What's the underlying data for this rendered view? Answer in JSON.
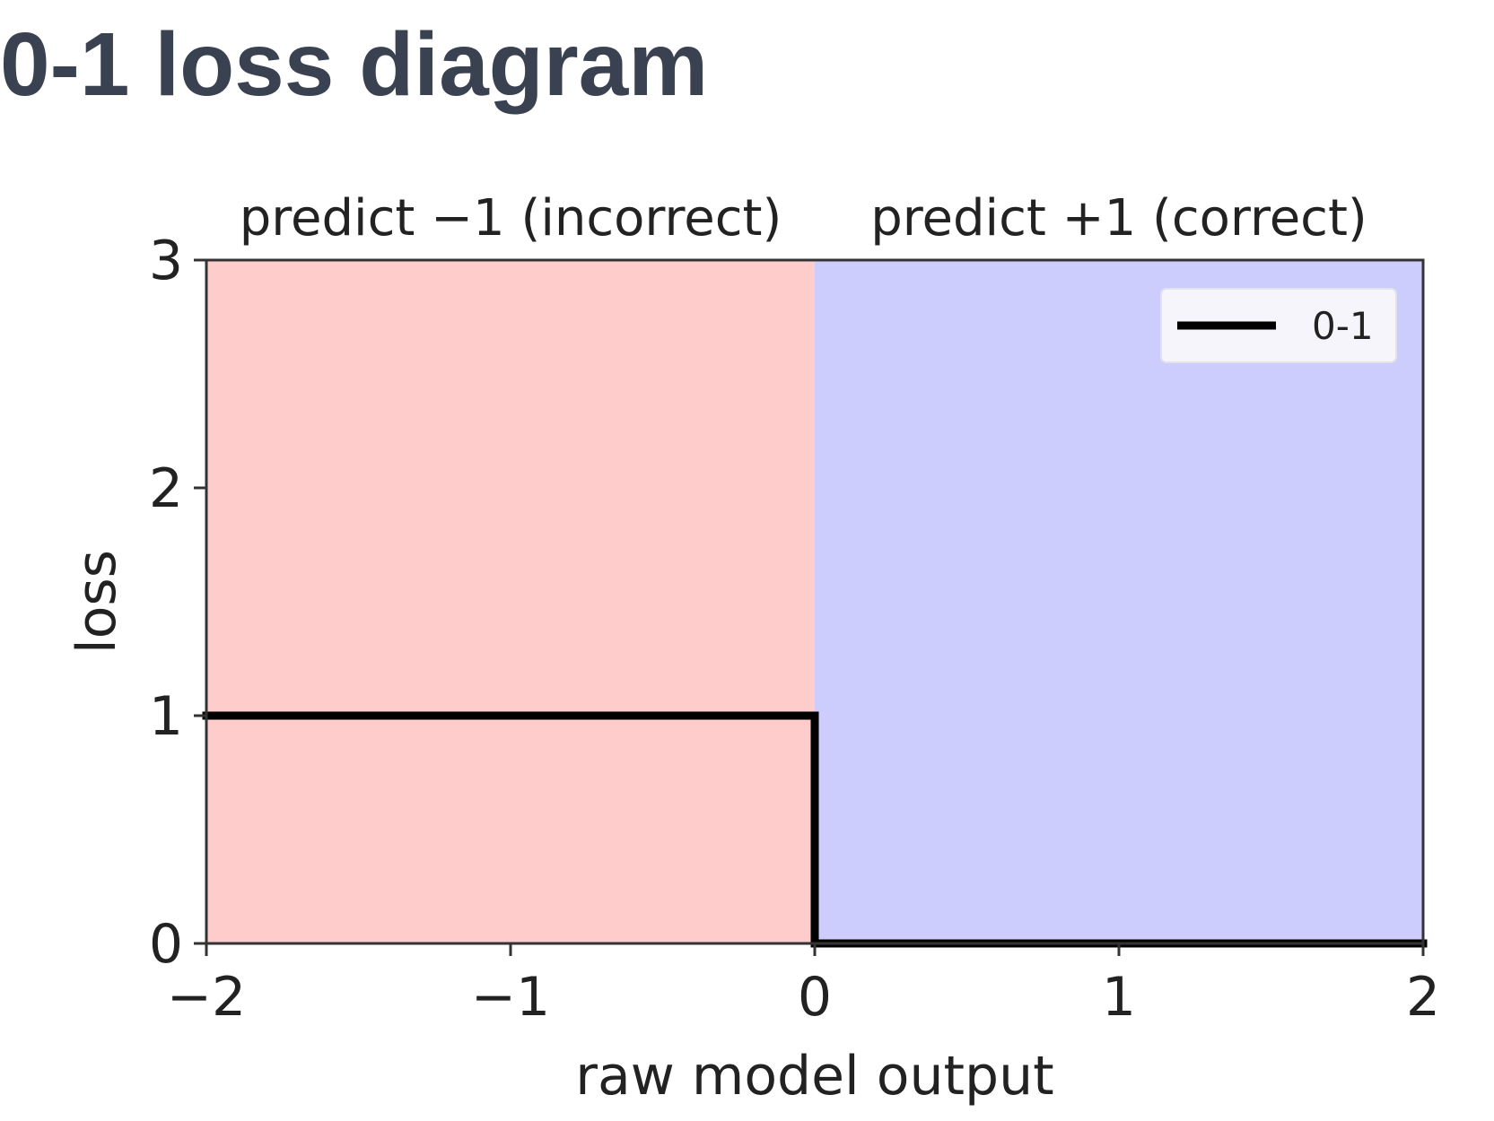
{
  "title": "0-1 loss diagram",
  "chart_data": {
    "type": "line",
    "title": "",
    "xlabel": "raw model output",
    "ylabel": "loss",
    "xlim": [
      -2,
      2
    ],
    "ylim": [
      0,
      3
    ],
    "x_ticks": [
      -2,
      -1,
      0,
      1,
      2
    ],
    "x_tick_labels": [
      "−2",
      "−1",
      "0",
      "1",
      "2"
    ],
    "y_ticks": [
      0,
      1,
      2,
      3
    ],
    "y_tick_labels": [
      "0",
      "1",
      "2",
      "3"
    ],
    "grid": false,
    "legend_position": "top-right",
    "regions": [
      {
        "label": "predict −1 (incorrect)",
        "x_from": -2,
        "x_to": 0,
        "color": "#ffcccc"
      },
      {
        "label": "predict +1 (correct)",
        "x_from": 0,
        "x_to": 2,
        "color": "#ccccfd"
      }
    ],
    "series": [
      {
        "name": "0-1",
        "color": "#000000",
        "x": [
          -2,
          0,
          0,
          2
        ],
        "y": [
          1,
          1,
          0,
          0
        ]
      }
    ]
  }
}
